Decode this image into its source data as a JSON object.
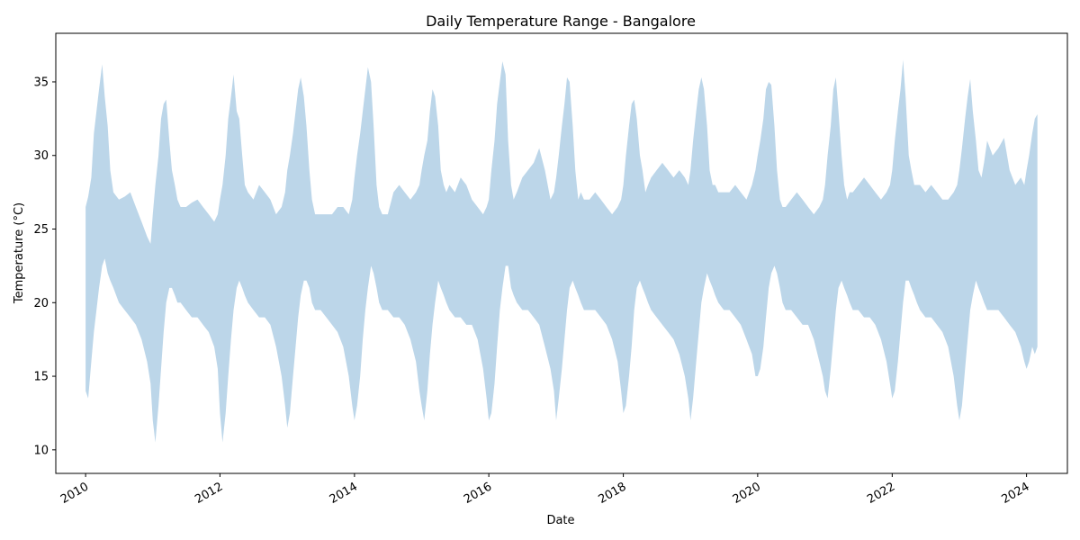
{
  "chart_data": {
    "type": "area",
    "title": "Daily Temperature Range - Bangalore",
    "xlabel": "Date",
    "ylabel": "Temperature (°C)",
    "xlim": [
      "2009-07-23",
      "2024-08-10"
    ],
    "ylim": [
      8.4,
      38.3
    ],
    "x_ticks": [
      "2010",
      "2012",
      "2014",
      "2016",
      "2018",
      "2020",
      "2022",
      "2024"
    ],
    "y_ticks": [
      10,
      15,
      20,
      25,
      30,
      35
    ],
    "grid": false,
    "legend": "none",
    "fill_color": "#bcd6e9",
    "series": [
      {
        "x": [
          "2010-01-01",
          "2010-01-15",
          "2010-02-01",
          "2010-02-15",
          "2010-03-01",
          "2010-03-15",
          "2010-04-01",
          "2010-04-15",
          "2010-05-01",
          "2010-05-15",
          "2010-06-01",
          "2010-07-01",
          "2010-08-01",
          "2010-09-01",
          "2010-10-01",
          "2010-11-01",
          "2010-12-01",
          "2010-12-20",
          "2011-01-01",
          "2011-01-15",
          "2011-02-01",
          "2011-02-15",
          "2011-03-01",
          "2011-03-15",
          "2011-04-01",
          "2011-04-15",
          "2011-05-01",
          "2011-05-15",
          "2011-06-01",
          "2011-07-01",
          "2011-08-01",
          "2011-09-01",
          "2011-10-01",
          "2011-11-01",
          "2011-12-01",
          "2011-12-20",
          "2012-01-01",
          "2012-01-15",
          "2012-02-01",
          "2012-02-15",
          "2012-03-01",
          "2012-03-15",
          "2012-04-01",
          "2012-04-15",
          "2012-05-01",
          "2012-05-15",
          "2012-06-01",
          "2012-07-01",
          "2012-08-01",
          "2012-09-01",
          "2012-10-01",
          "2012-11-01",
          "2012-12-01",
          "2012-12-20",
          "2013-01-01",
          "2013-01-15",
          "2013-02-01",
          "2013-02-15",
          "2013-03-01",
          "2013-03-15",
          "2013-04-01",
          "2013-04-15",
          "2013-05-01",
          "2013-05-15",
          "2013-06-01",
          "2013-07-01",
          "2013-08-01",
          "2013-09-01",
          "2013-10-01",
          "2013-11-01",
          "2013-12-01",
          "2013-12-20",
          "2014-01-01",
          "2014-01-15",
          "2014-02-01",
          "2014-02-15",
          "2014-03-01",
          "2014-03-15",
          "2014-04-01",
          "2014-04-15",
          "2014-05-01",
          "2014-05-15",
          "2014-06-01",
          "2014-07-01",
          "2014-08-01",
          "2014-09-01",
          "2014-10-01",
          "2014-11-01",
          "2014-12-01",
          "2014-12-20",
          "2015-01-01",
          "2015-01-15",
          "2015-02-01",
          "2015-02-15",
          "2015-03-01",
          "2015-03-15",
          "2015-04-01",
          "2015-04-15",
          "2015-05-01",
          "2015-05-15",
          "2015-06-01",
          "2015-07-01",
          "2015-08-01",
          "2015-09-01",
          "2015-10-01",
          "2015-11-01",
          "2015-12-01",
          "2015-12-20",
          "2016-01-01",
          "2016-01-15",
          "2016-02-01",
          "2016-02-15",
          "2016-03-01",
          "2016-03-15",
          "2016-04-01",
          "2016-04-15",
          "2016-05-01",
          "2016-05-15",
          "2016-06-01",
          "2016-07-01",
          "2016-08-01",
          "2016-09-01",
          "2016-10-01",
          "2016-11-01",
          "2016-12-01",
          "2016-12-20",
          "2017-01-01",
          "2017-01-15",
          "2017-02-01",
          "2017-02-15",
          "2017-03-01",
          "2017-03-15",
          "2017-04-01",
          "2017-04-15",
          "2017-05-01",
          "2017-05-15",
          "2017-06-01",
          "2017-07-01",
          "2017-08-01",
          "2017-09-01",
          "2017-10-01",
          "2017-11-01",
          "2017-12-01",
          "2017-12-20",
          "2018-01-01",
          "2018-01-15",
          "2018-02-01",
          "2018-02-15",
          "2018-03-01",
          "2018-03-15",
          "2018-04-01",
          "2018-04-15",
          "2018-05-01",
          "2018-05-15",
          "2018-06-01",
          "2018-07-01",
          "2018-08-01",
          "2018-09-01",
          "2018-10-01",
          "2018-11-01",
          "2018-12-01",
          "2018-12-20",
          "2019-01-01",
          "2019-01-15",
          "2019-02-01",
          "2019-02-15",
          "2019-03-01",
          "2019-03-15",
          "2019-04-01",
          "2019-04-15",
          "2019-05-01",
          "2019-05-15",
          "2019-06-01",
          "2019-07-01",
          "2019-08-01",
          "2019-09-01",
          "2019-10-01",
          "2019-11-01",
          "2019-12-01",
          "2019-12-20",
          "2020-01-01",
          "2020-01-15",
          "2020-02-01",
          "2020-02-15",
          "2020-03-01",
          "2020-03-15",
          "2020-04-01",
          "2020-04-15",
          "2020-05-01",
          "2020-05-15",
          "2020-06-01",
          "2020-07-01",
          "2020-08-01",
          "2020-09-01",
          "2020-10-01",
          "2020-11-01",
          "2020-12-01",
          "2020-12-20",
          "2021-01-01",
          "2021-01-15",
          "2021-02-01",
          "2021-02-15",
          "2021-03-01",
          "2021-03-15",
          "2021-04-01",
          "2021-04-15",
          "2021-05-01",
          "2021-05-15",
          "2021-06-01",
          "2021-07-01",
          "2021-08-01",
          "2021-09-01",
          "2021-10-01",
          "2021-11-01",
          "2021-12-01",
          "2021-12-20",
          "2022-01-01",
          "2022-01-15",
          "2022-02-01",
          "2022-02-15",
          "2022-03-01",
          "2022-03-15",
          "2022-04-01",
          "2022-04-15",
          "2022-05-01",
          "2022-05-15",
          "2022-06-01",
          "2022-07-01",
          "2022-08-01",
          "2022-09-01",
          "2022-10-01",
          "2022-11-01",
          "2022-12-01",
          "2022-12-20",
          "2023-01-01",
          "2023-01-15",
          "2023-02-01",
          "2023-02-15",
          "2023-03-01",
          "2023-03-15",
          "2023-04-01",
          "2023-04-15",
          "2023-05-01",
          "2023-05-15",
          "2023-06-01",
          "2023-07-01",
          "2023-08-01",
          "2023-09-01",
          "2023-10-01",
          "2023-11-01",
          "2023-12-01",
          "2023-12-20",
          "2024-01-01",
          "2024-01-15",
          "2024-02-01",
          "2024-02-15",
          "2024-02-29"
        ],
        "upper": [
          26.5,
          27.2,
          28.5,
          31.5,
          33.0,
          34.5,
          36.2,
          34.0,
          32.0,
          29.0,
          27.5,
          27.0,
          27.2,
          27.5,
          26.5,
          25.5,
          24.5,
          24.0,
          26.0,
          28.0,
          30.0,
          32.5,
          33.5,
          33.8,
          31.0,
          29.0,
          28.0,
          27.0,
          26.5,
          26.5,
          26.8,
          27.0,
          26.5,
          26.0,
          25.5,
          26.0,
          27.0,
          28.0,
          30.0,
          32.5,
          34.0,
          35.5,
          33.0,
          32.5,
          30.0,
          28.0,
          27.5,
          27.0,
          28.0,
          27.5,
          27.0,
          26.0,
          26.5,
          27.5,
          29.0,
          30.0,
          31.5,
          33.0,
          34.5,
          35.3,
          34.0,
          32.0,
          29.0,
          27.0,
          26.0,
          26.0,
          26.0,
          26.0,
          26.5,
          26.5,
          26.0,
          27.0,
          28.5,
          30.0,
          31.5,
          33.0,
          34.5,
          36.0,
          35.0,
          32.0,
          28.0,
          26.5,
          26.0,
          26.0,
          27.5,
          28.0,
          27.5,
          27.0,
          27.5,
          28.0,
          29.0,
          30.0,
          31.0,
          33.0,
          34.5,
          34.0,
          32.0,
          29.0,
          28.0,
          27.5,
          28.0,
          27.5,
          28.5,
          28.0,
          27.0,
          26.5,
          26.0,
          26.5,
          27.0,
          29.0,
          31.0,
          33.5,
          35.0,
          36.4,
          35.5,
          31.0,
          28.0,
          27.0,
          27.5,
          28.5,
          29.0,
          29.5,
          30.5,
          29.0,
          27.0,
          27.5,
          28.5,
          30.0,
          32.0,
          33.5,
          35.3,
          35.0,
          32.0,
          29.0,
          27.0,
          27.5,
          27.0,
          27.0,
          27.5,
          27.0,
          26.5,
          26.0,
          26.5,
          27.0,
          28.0,
          30.0,
          32.0,
          33.5,
          33.8,
          32.5,
          30.0,
          29.0,
          27.5,
          28.0,
          28.5,
          29.0,
          29.5,
          29.0,
          28.5,
          29.0,
          28.5,
          28.0,
          29.0,
          31.0,
          33.0,
          34.5,
          35.3,
          34.5,
          32.0,
          29.0,
          28.0,
          28.0,
          27.5,
          27.5,
          27.5,
          28.0,
          27.5,
          27.0,
          28.0,
          29.0,
          30.0,
          31.0,
          32.5,
          34.5,
          35.0,
          34.8,
          32.0,
          29.0,
          27.0,
          26.5,
          26.5,
          27.0,
          27.5,
          27.0,
          26.5,
          26.0,
          26.5,
          27.0,
          28.0,
          30.0,
          32.0,
          34.5,
          35.3,
          33.0,
          30.0,
          28.0,
          27.0,
          27.5,
          27.5,
          28.0,
          28.5,
          28.0,
          27.5,
          27.0,
          27.5,
          28.0,
          29.0,
          31.0,
          33.0,
          34.5,
          36.5,
          34.0,
          30.0,
          29.0,
          28.0,
          28.0,
          28.0,
          27.5,
          28.0,
          27.5,
          27.0,
          27.0,
          27.5,
          28.0,
          29.0,
          30.5,
          32.5,
          34.0,
          35.2,
          33.0,
          31.0,
          29.0,
          28.5,
          29.5,
          31.0,
          30.0,
          30.5,
          31.2,
          29.0,
          28.0,
          28.5,
          28.0,
          29.0,
          30.0,
          31.5,
          32.5,
          32.8
        ],
        "lower": [
          14.0,
          13.5,
          16.0,
          18.0,
          19.5,
          21.0,
          22.5,
          23.0,
          22.0,
          21.5,
          21.0,
          20.0,
          19.5,
          19.0,
          18.5,
          17.5,
          16.0,
          14.5,
          12.0,
          10.5,
          13.0,
          15.5,
          18.0,
          20.0,
          21.0,
          21.0,
          20.5,
          20.0,
          20.0,
          19.5,
          19.0,
          19.0,
          18.5,
          18.0,
          17.0,
          15.5,
          12.5,
          10.5,
          12.5,
          15.0,
          17.5,
          19.5,
          21.0,
          21.5,
          21.0,
          20.5,
          20.0,
          19.5,
          19.0,
          19.0,
          18.5,
          17.0,
          15.0,
          13.0,
          11.5,
          12.5,
          15.0,
          17.0,
          19.0,
          20.5,
          21.5,
          21.5,
          21.0,
          20.0,
          19.5,
          19.5,
          19.0,
          18.5,
          18.0,
          17.0,
          15.0,
          13.0,
          12.0,
          13.0,
          15.0,
          17.5,
          19.5,
          21.0,
          22.5,
          22.0,
          21.0,
          20.0,
          19.5,
          19.5,
          19.0,
          19.0,
          18.5,
          17.5,
          16.0,
          14.0,
          13.0,
          12.0,
          14.0,
          16.5,
          18.5,
          20.0,
          21.5,
          21.0,
          20.5,
          20.0,
          19.5,
          19.0,
          19.0,
          18.5,
          18.5,
          17.5,
          15.5,
          13.5,
          12.0,
          12.5,
          14.5,
          17.0,
          19.5,
          21.0,
          22.5,
          22.5,
          21.0,
          20.5,
          20.0,
          19.5,
          19.5,
          19.0,
          18.5,
          17.0,
          15.5,
          14.0,
          12.0,
          13.5,
          15.5,
          17.5,
          19.5,
          21.0,
          21.5,
          21.0,
          20.5,
          20.0,
          19.5,
          19.5,
          19.5,
          19.0,
          18.5,
          17.5,
          16.0,
          14.0,
          12.5,
          13.0,
          15.0,
          17.0,
          19.5,
          21.0,
          21.5,
          21.0,
          20.5,
          20.0,
          19.5,
          19.0,
          18.5,
          18.0,
          17.5,
          16.5,
          15.0,
          13.5,
          12.0,
          13.5,
          16.0,
          18.0,
          20.0,
          21.0,
          22.0,
          21.5,
          21.0,
          20.5,
          20.0,
          19.5,
          19.5,
          19.0,
          18.5,
          17.5,
          16.5,
          15.0,
          15.0,
          15.5,
          17.0,
          19.0,
          21.0,
          22.0,
          22.5,
          22.0,
          21.0,
          20.0,
          19.5,
          19.5,
          19.0,
          18.5,
          18.5,
          17.5,
          16.0,
          15.0,
          14.0,
          13.5,
          15.5,
          17.5,
          19.5,
          21.0,
          21.5,
          21.0,
          20.5,
          20.0,
          19.5,
          19.5,
          19.0,
          19.0,
          18.5,
          17.5,
          16.0,
          14.5,
          13.5,
          14.0,
          16.0,
          18.0,
          20.0,
          21.5,
          21.5,
          21.0,
          20.5,
          20.0,
          19.5,
          19.0,
          19.0,
          18.5,
          18.0,
          17.0,
          15.0,
          13.0,
          12.0,
          13.0,
          15.5,
          17.5,
          19.5,
          20.5,
          21.5,
          21.0,
          20.5,
          20.0,
          19.5,
          19.5,
          19.5,
          19.0,
          18.5,
          18.0,
          17.0,
          16.0,
          15.5,
          16.0,
          17.0,
          16.5,
          17.0
        ]
      }
    ]
  }
}
